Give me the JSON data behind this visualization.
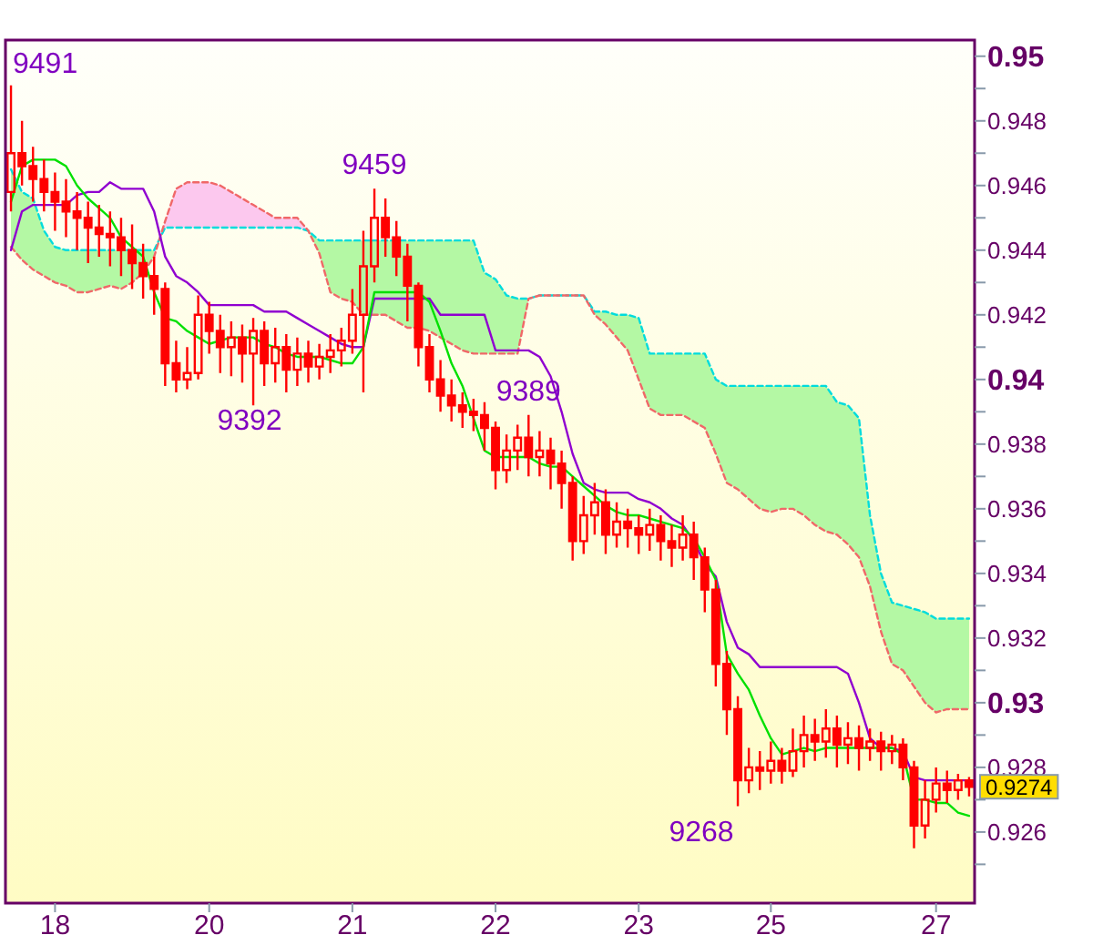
{
  "chart_data": {
    "type": "candlestick",
    "color": "#ff0000",
    "categories": [
      null,
      null,
      null,
      null,
      "18",
      null,
      null,
      null,
      null,
      null,
      null,
      null,
      null,
      null,
      null,
      null,
      null,
      null,
      "20",
      null,
      null,
      null,
      null,
      null,
      null,
      null,
      null,
      null,
      null,
      null,
      null,
      "21",
      null,
      null,
      null,
      null,
      null,
      null,
      null,
      null,
      null,
      null,
      null,
      null,
      "22",
      null,
      null,
      null,
      null,
      null,
      null,
      null,
      null,
      null,
      null,
      null,
      null,
      "23",
      null,
      null,
      null,
      null,
      null,
      null,
      null,
      null,
      null,
      null,
      null,
      "25",
      null,
      null,
      null,
      null,
      null,
      null,
      null,
      null,
      null,
      null,
      null,
      null,
      null,
      null,
      "27",
      null,
      null,
      null
    ],
    "ohlc": [
      [
        0.9458,
        0.9491,
        0.9452,
        0.947
      ],
      [
        0.947,
        0.948,
        0.946,
        0.9466
      ],
      [
        0.9466,
        0.9472,
        0.9455,
        0.9462
      ],
      [
        0.9462,
        0.9468,
        0.9452,
        0.9458
      ],
      [
        0.9458,
        0.9464,
        0.9446,
        0.9455
      ],
      [
        0.9455,
        0.9462,
        0.9444,
        0.9452
      ],
      [
        0.9452,
        0.9458,
        0.944,
        0.945
      ],
      [
        0.945,
        0.9455,
        0.9436,
        0.9447
      ],
      [
        0.9447,
        0.9454,
        0.9438,
        0.9445
      ],
      [
        0.9445,
        0.9452,
        0.9435,
        0.9444
      ],
      [
        0.9444,
        0.945,
        0.9432,
        0.944
      ],
      [
        0.944,
        0.9448,
        0.9428,
        0.9436
      ],
      [
        0.9436,
        0.9442,
        0.9425,
        0.9432
      ],
      [
        0.9432,
        0.9438,
        0.942,
        0.9428
      ],
      [
        0.9428,
        0.943,
        0.9398,
        0.9405
      ],
      [
        0.9405,
        0.9412,
        0.9396,
        0.94
      ],
      [
        0.94,
        0.941,
        0.9397,
        0.9402
      ],
      [
        0.9402,
        0.9426,
        0.94,
        0.942
      ],
      [
        0.942,
        0.9424,
        0.9408,
        0.9415
      ],
      [
        0.9415,
        0.942,
        0.9402,
        0.941
      ],
      [
        0.941,
        0.9418,
        0.9401,
        0.9413
      ],
      [
        0.9413,
        0.9417,
        0.9399,
        0.9408
      ],
      [
        0.9408,
        0.9419,
        0.9392,
        0.9415
      ],
      [
        0.9415,
        0.9418,
        0.9398,
        0.9405
      ],
      [
        0.9405,
        0.9416,
        0.9399,
        0.941
      ],
      [
        0.941,
        0.9414,
        0.9396,
        0.9403
      ],
      [
        0.9403,
        0.9413,
        0.9398,
        0.9408
      ],
      [
        0.9408,
        0.9412,
        0.9399,
        0.9404
      ],
      [
        0.9404,
        0.9411,
        0.94,
        0.9407
      ],
      [
        0.9407,
        0.9414,
        0.9402,
        0.9409
      ],
      [
        0.9409,
        0.9416,
        0.9404,
        0.9412
      ],
      [
        0.9412,
        0.9428,
        0.9408,
        0.942
      ],
      [
        0.942,
        0.9446,
        0.9396,
        0.9435
      ],
      [
        0.9435,
        0.9459,
        0.943,
        0.945
      ],
      [
        0.945,
        0.9456,
        0.9438,
        0.9444
      ],
      [
        0.9444,
        0.9449,
        0.9432,
        0.9438
      ],
      [
        0.9438,
        0.9442,
        0.9418,
        0.9429
      ],
      [
        0.9429,
        0.943,
        0.9404,
        0.941
      ],
      [
        0.941,
        0.9414,
        0.9396,
        0.94
      ],
      [
        0.94,
        0.9406,
        0.939,
        0.9395
      ],
      [
        0.9395,
        0.94,
        0.9387,
        0.9392
      ],
      [
        0.9392,
        0.9396,
        0.9385,
        0.939
      ],
      [
        0.939,
        0.9394,
        0.9384,
        0.9389
      ],
      [
        0.9389,
        0.9393,
        0.9378,
        0.9385
      ],
      [
        0.9385,
        0.9387,
        0.9366,
        0.9372
      ],
      [
        0.9372,
        0.9383,
        0.9368,
        0.9378
      ],
      [
        0.9378,
        0.9386,
        0.9372,
        0.9382
      ],
      [
        0.9382,
        0.9389,
        0.937,
        0.9376
      ],
      [
        0.9376,
        0.9384,
        0.937,
        0.9378
      ],
      [
        0.9378,
        0.9382,
        0.9366,
        0.9374
      ],
      [
        0.9374,
        0.9378,
        0.936,
        0.9368
      ],
      [
        0.9368,
        0.937,
        0.9344,
        0.935
      ],
      [
        0.935,
        0.9364,
        0.9346,
        0.9358
      ],
      [
        0.9358,
        0.9368,
        0.9352,
        0.9362
      ],
      [
        0.9362,
        0.9366,
        0.9346,
        0.9352
      ],
      [
        0.9352,
        0.9362,
        0.9348,
        0.9356
      ],
      [
        0.9356,
        0.936,
        0.9348,
        0.9354
      ],
      [
        0.9354,
        0.9358,
        0.9346,
        0.9352
      ],
      [
        0.9352,
        0.936,
        0.9347,
        0.9355
      ],
      [
        0.9355,
        0.9358,
        0.9344,
        0.935
      ],
      [
        0.935,
        0.9355,
        0.9342,
        0.9348
      ],
      [
        0.9348,
        0.9358,
        0.9344,
        0.9352
      ],
      [
        0.9352,
        0.9356,
        0.9338,
        0.9345
      ],
      [
        0.9345,
        0.9348,
        0.9328,
        0.9335
      ],
      [
        0.9335,
        0.9338,
        0.9305,
        0.9312
      ],
      [
        0.9312,
        0.9316,
        0.929,
        0.9298
      ],
      [
        0.9298,
        0.9302,
        0.9268,
        0.9276
      ],
      [
        0.9276,
        0.9286,
        0.9272,
        0.928
      ],
      [
        0.928,
        0.9285,
        0.9273,
        0.9279
      ],
      [
        0.9279,
        0.9288,
        0.9275,
        0.9282
      ],
      [
        0.9282,
        0.9286,
        0.9275,
        0.9279
      ],
      [
        0.9279,
        0.9292,
        0.9277,
        0.9285
      ],
      [
        0.9285,
        0.9296,
        0.928,
        0.929
      ],
      [
        0.929,
        0.9295,
        0.9282,
        0.9288
      ],
      [
        0.9288,
        0.9298,
        0.9283,
        0.9292
      ],
      [
        0.9292,
        0.9296,
        0.928,
        0.9287
      ],
      [
        0.9287,
        0.9294,
        0.9281,
        0.9289
      ],
      [
        0.9289,
        0.9293,
        0.9279,
        0.9286
      ],
      [
        0.9286,
        0.9292,
        0.9282,
        0.9288
      ],
      [
        0.9288,
        0.9291,
        0.9279,
        0.9285
      ],
      [
        0.9285,
        0.929,
        0.9281,
        0.9287
      ],
      [
        0.9287,
        0.9289,
        0.9276,
        0.928
      ],
      [
        0.928,
        0.9282,
        0.9255,
        0.9262
      ],
      [
        0.9262,
        0.9276,
        0.9258,
        0.927
      ],
      [
        0.927,
        0.928,
        0.9266,
        0.9275
      ],
      [
        0.9275,
        0.9279,
        0.9269,
        0.9273
      ],
      [
        0.9273,
        0.9278,
        0.927,
        0.9276
      ],
      [
        0.9276,
        0.9277,
        0.9271,
        0.9274
      ]
    ],
    "series": [
      {
        "type": "line",
        "color": "#00dcdc",
        "line_style": "dashed",
        "upper": [
          0.9465,
          0.9458,
          0.9456,
          0.9446,
          0.9441,
          0.944,
          0.944,
          0.944,
          0.944,
          0.944,
          0.944,
          0.944,
          0.944,
          0.944,
          null,
          null,
          null,
          null,
          null,
          null,
          null,
          null,
          null,
          null,
          null,
          null,
          null,
          0.9446,
          0.9443,
          0.9443,
          0.9443,
          0.9443,
          0.9443,
          0.9443,
          0.9443,
          0.9443,
          0.9443,
          0.9443,
          0.9443,
          0.9443,
          0.9443,
          0.9443,
          0.9443,
          0.9433,
          0.9431,
          0.9426,
          0.9425,
          0.9425,
          0.9426,
          0.9426,
          0.9426,
          0.9426,
          0.9426,
          0.9421,
          0.9421,
          0.942,
          0.942,
          0.9419,
          0.9408,
          0.9408,
          0.9408,
          0.9408,
          0.9408,
          0.9408,
          0.94,
          0.9398,
          0.9398,
          0.9398,
          0.9398,
          0.9398,
          0.9398,
          0.9398,
          0.9398,
          0.9398,
          0.9398,
          0.9393,
          0.9392,
          0.9388,
          0.9358,
          0.934,
          0.9331,
          0.933,
          0.9329,
          0.9328,
          0.9326,
          0.9326,
          0.9326,
          0.9326
        ],
        "lower": [
          0.9441,
          0.9437,
          0.9434,
          0.9432,
          0.943,
          0.9429,
          0.9427,
          0.9427,
          0.9428,
          0.9429,
          0.9428,
          0.943,
          0.9433,
          0.9438,
          null,
          null,
          null,
          null,
          null,
          null,
          null,
          null,
          null,
          null,
          null,
          null,
          null,
          0.9446,
          0.9439,
          0.9427,
          0.9425,
          0.9424,
          0.942,
          0.942,
          0.942,
          0.9418,
          0.9416,
          0.9416,
          0.9415,
          0.9413,
          0.9411,
          0.9409,
          0.9408,
          0.9408,
          0.9408,
          0.9408,
          0.9408,
          0.9425,
          0.9426,
          0.9426,
          0.9426,
          0.9426,
          0.9426,
          0.942,
          0.9417,
          0.9413,
          0.9409,
          0.94,
          0.9391,
          0.9389,
          0.9389,
          0.9389,
          0.9387,
          0.9385,
          0.9377,
          0.9368,
          0.9366,
          0.9363,
          0.936,
          0.9359,
          0.936,
          0.936,
          0.9358,
          0.9355,
          0.9353,
          0.9352,
          0.9349,
          0.9345,
          0.9336,
          0.9322,
          0.9312,
          0.931,
          0.9305,
          0.93,
          0.9297,
          0.9298,
          0.9298,
          0.9298
        ],
        "values": [
          0.9465,
          0.9458,
          0.9456,
          0.9446,
          0.9441,
          0.944,
          0.944,
          0.944,
          0.944,
          0.944,
          0.944,
          0.944,
          0.944,
          0.944,
          0.9447,
          0.9447,
          0.9447,
          0.9447,
          0.9447,
          0.9447,
          0.9447,
          0.9447,
          0.9447,
          0.9447,
          0.9447,
          0.9447,
          0.9447,
          0.9446,
          0.9443,
          0.9443,
          0.9443,
          0.9443,
          0.9443,
          0.9443,
          0.9443,
          0.9443,
          0.9443,
          0.9443,
          0.9443,
          0.9443,
          0.9443,
          0.9443,
          0.9443,
          0.9433,
          0.9431,
          0.9426,
          0.9425,
          0.9425,
          0.9426,
          0.9426,
          0.9426,
          0.9426,
          0.9426,
          0.9421,
          0.9421,
          0.942,
          0.942,
          0.9419,
          0.9408,
          0.9408,
          0.9408,
          0.9408,
          0.9408,
          0.9408,
          0.94,
          0.9398,
          0.9398,
          0.9398,
          0.9398,
          0.9398,
          0.9398,
          0.9398,
          0.9398,
          0.9398,
          0.9398,
          0.9393,
          0.9392,
          0.9388,
          0.9358,
          0.934,
          0.9331,
          0.933,
          0.9329,
          0.9328,
          0.9326,
          0.9326,
          0.9326,
          0.9326
        ]
      },
      {
        "type": "line",
        "color": "#f06868",
        "line_style": "dashed",
        "upper": [
          null,
          null,
          null,
          null,
          null,
          null,
          null,
          null,
          null,
          null,
          null,
          null,
          null,
          0.9438,
          0.9449,
          0.9459,
          0.9461,
          0.9461,
          0.9461,
          0.946,
          0.9458,
          0.9456,
          0.9454,
          0.9452,
          0.945,
          0.945,
          0.945,
          0.9446,
          null,
          null,
          null,
          null,
          null,
          null,
          null,
          null,
          null,
          null,
          null,
          null,
          null,
          null,
          null,
          null,
          null,
          null,
          null,
          null,
          null,
          null,
          null,
          null,
          null,
          null,
          null,
          null,
          null,
          null,
          null,
          null,
          null,
          null,
          null,
          null,
          null,
          null,
          null,
          null,
          null,
          null,
          null,
          null,
          null,
          null,
          null,
          null,
          null,
          null,
          null,
          null,
          null,
          null,
          null,
          null,
          null,
          null,
          null,
          null
        ],
        "lower": [
          null,
          null,
          null,
          null,
          null,
          null,
          null,
          null,
          null,
          null,
          null,
          null,
          null,
          0.944,
          0.9447,
          0.9447,
          0.9447,
          0.9447,
          0.9447,
          0.9447,
          0.9447,
          0.9447,
          0.9447,
          0.9447,
          0.9447,
          0.9447,
          0.9447,
          0.9446,
          null,
          null,
          null,
          null,
          null,
          null,
          null,
          null,
          null,
          null,
          null,
          null,
          null,
          null,
          null,
          null,
          null,
          null,
          null,
          null,
          null,
          null,
          null,
          null,
          null,
          null,
          null,
          null,
          null,
          null,
          null,
          null,
          null,
          null,
          null,
          null,
          null,
          null,
          null,
          null,
          null,
          null,
          null,
          null,
          null,
          null,
          null,
          null,
          null,
          null,
          null,
          null,
          null,
          null,
          null,
          null,
          null,
          null,
          null,
          null
        ],
        "values": [
          0.9441,
          0.9437,
          0.9434,
          0.9432,
          0.943,
          0.9429,
          0.9427,
          0.9427,
          0.9428,
          0.9429,
          0.9428,
          0.943,
          0.9433,
          0.9438,
          0.9449,
          0.9459,
          0.9461,
          0.9461,
          0.9461,
          0.946,
          0.9458,
          0.9456,
          0.9454,
          0.9452,
          0.945,
          0.945,
          0.945,
          0.9446,
          0.9439,
          0.9427,
          0.9425,
          0.9424,
          0.942,
          0.942,
          0.942,
          0.9418,
          0.9416,
          0.9416,
          0.9415,
          0.9413,
          0.9411,
          0.9409,
          0.9408,
          0.9408,
          0.9408,
          0.9408,
          0.9408,
          0.9425,
          0.9426,
          0.9426,
          0.9426,
          0.9426,
          0.9426,
          0.942,
          0.9417,
          0.9413,
          0.9409,
          0.94,
          0.9391,
          0.9389,
          0.9389,
          0.9389,
          0.9387,
          0.9385,
          0.9377,
          0.9368,
          0.9366,
          0.9363,
          0.936,
          0.9359,
          0.936,
          0.936,
          0.9358,
          0.9355,
          0.9353,
          0.9352,
          0.9349,
          0.9345,
          0.9336,
          0.9322,
          0.9312,
          0.931,
          0.9305,
          0.93,
          0.9297,
          0.9298,
          0.9298,
          0.9298
        ]
      },
      {
        "type": "line",
        "color": "#9000d0",
        "line_style": "solid",
        "values": [
          0.944,
          0.9452,
          0.9454,
          0.9454,
          0.9454,
          0.9454,
          0.9457,
          0.9458,
          0.9458,
          0.9461,
          0.9459,
          0.9459,
          0.9459,
          0.9452,
          0.9438,
          0.9432,
          0.943,
          0.9427,
          0.9423,
          0.9423,
          0.9423,
          0.9423,
          0.9423,
          0.9421,
          0.9421,
          0.9421,
          0.9419,
          0.9417,
          0.9415,
          0.9413,
          0.9411,
          0.941,
          0.941,
          0.9425,
          0.9425,
          0.9425,
          0.9425,
          0.9425,
          0.9425,
          0.942,
          0.942,
          0.942,
          0.942,
          0.942,
          0.9409,
          0.9409,
          0.9409,
          0.9409,
          0.9407,
          0.9401,
          0.939,
          0.9377,
          0.9368,
          0.9366,
          0.9365,
          0.9365,
          0.9365,
          0.9363,
          0.9362,
          0.936,
          0.9357,
          0.9355,
          0.935,
          0.9343,
          0.9339,
          0.9325,
          0.9317,
          0.9315,
          0.9311,
          0.9311,
          0.9311,
          0.9311,
          0.9311,
          0.9311,
          0.9311,
          0.9311,
          0.9309,
          0.93,
          0.9289,
          0.9286,
          0.9286,
          0.9285,
          0.9277,
          0.9276,
          0.9276,
          0.9276,
          0.9276,
          0.9276
        ]
      },
      {
        "type": "line",
        "color": "#00e000",
        "line_style": "solid",
        "values": [
          0.9455,
          0.9466,
          0.9468,
          0.9468,
          0.9468,
          0.9466,
          0.946,
          0.9456,
          0.9453,
          0.945,
          0.9444,
          0.9441,
          0.9438,
          0.9427,
          0.9419,
          0.9418,
          0.9415,
          0.9413,
          0.9411,
          0.9412,
          0.9413,
          0.9413,
          0.9413,
          0.9411,
          0.941,
          0.9408,
          0.9407,
          0.9407,
          0.9407,
          0.9406,
          0.9405,
          0.9405,
          0.941,
          0.9427,
          0.9427,
          0.9427,
          0.9427,
          0.9427,
          0.9424,
          0.9415,
          0.9405,
          0.9398,
          0.9388,
          0.9378,
          0.9376,
          0.9376,
          0.9376,
          0.9376,
          0.9374,
          0.9373,
          0.9373,
          0.937,
          0.9367,
          0.9364,
          0.9361,
          0.9359,
          0.9358,
          0.9358,
          0.9357,
          0.9356,
          0.9355,
          0.9354,
          0.9351,
          0.9345,
          0.9338,
          0.9315,
          0.9309,
          0.9304,
          0.9296,
          0.9289,
          0.9284,
          0.9285,
          0.9286,
          0.9285,
          0.9286,
          0.9286,
          0.9286,
          0.9286,
          0.9286,
          0.9286,
          0.9286,
          0.9284,
          0.927,
          0.927,
          0.9269,
          0.9269,
          0.9266,
          0.9265
        ]
      }
    ],
    "ylim": [
      0.9238,
      0.9505
    ],
    "yticks": [
      {
        "value": 0.925,
        "label": null
      },
      0.926,
      {
        "value": 0.927,
        "label": null
      },
      0.928,
      {
        "value": 0.929,
        "label": null
      },
      0.93,
      {
        "value": 0.931,
        "label": null
      },
      0.932,
      {
        "value": 0.933,
        "label": null
      },
      0.934,
      {
        "value": 0.935,
        "label": null
      },
      0.936,
      {
        "value": 0.937,
        "label": null
      },
      0.938,
      {
        "value": 0.939,
        "label": null
      },
      0.94,
      {
        "value": 0.941,
        "label": null
      },
      0.942,
      {
        "value": 0.943,
        "label": null
      },
      0.944,
      {
        "value": 0.945,
        "label": null
      },
      0.946,
      {
        "value": 0.947,
        "label": null
      },
      0.948,
      {
        "value": 0.949,
        "label": null
      },
      0.95
    ],
    "annotations": [
      "9491",
      "9392",
      {
        "text": "9459",
        "y": 0.9459
      },
      {
        "text": "9389",
        "y": 0.9389
      },
      "9268",
      "0.9274"
    ]
  }
}
